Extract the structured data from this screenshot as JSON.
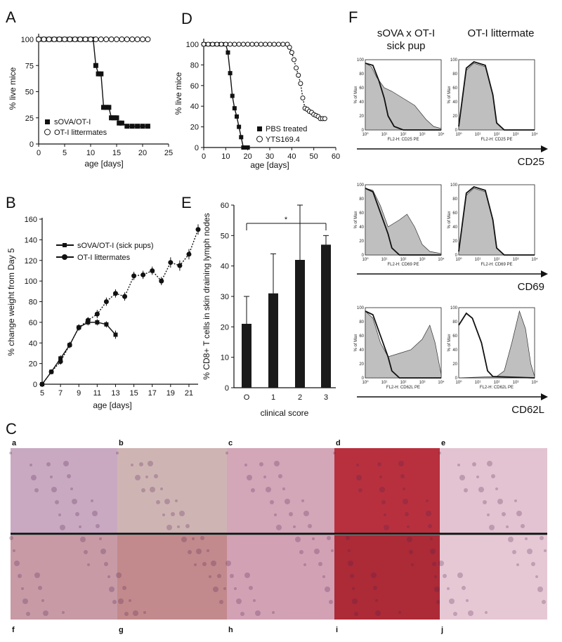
{
  "panel_labels": {
    "A": "A",
    "B": "B",
    "C": "C",
    "D": "D",
    "E": "E",
    "F": "F"
  },
  "chart_data": [
    {
      "id": "A",
      "type": "line",
      "xlabel": "age [days]",
      "ylabel": "% live mice",
      "xlim": [
        0,
        25
      ],
      "ylim": [
        0,
        100
      ],
      "xticks": [
        0,
        5,
        10,
        15,
        20,
        25
      ],
      "yticks": [
        0,
        25,
        50,
        75,
        100
      ],
      "legend": "bottom-left",
      "series": [
        {
          "name": "sOVA/OT-I",
          "marker": "filled-square",
          "x": [
            0,
            1,
            2,
            3,
            4,
            5,
            6,
            7,
            8,
            9,
            10,
            10.5,
            11,
            11.5,
            12,
            12.5,
            13,
            13.5,
            14,
            14.5,
            15,
            15.5,
            16,
            17,
            18,
            19,
            20,
            21
          ],
          "y": [
            100,
            100,
            100,
            100,
            100,
            100,
            100,
            100,
            100,
            100,
            100,
            100,
            75,
            67,
            67,
            35,
            35,
            35,
            25,
            25,
            25,
            20,
            20,
            17,
            17,
            17,
            17,
            17
          ]
        },
        {
          "name": "OT-I littermates",
          "marker": "open-circle",
          "x": [
            0,
            1,
            2,
            3,
            4,
            5,
            6,
            7,
            8,
            9,
            10,
            11,
            12,
            13,
            14,
            15,
            16,
            17,
            18,
            19,
            20,
            21
          ],
          "y": [
            100,
            100,
            100,
            100,
            100,
            100,
            100,
            100,
            100,
            100,
            100,
            100,
            100,
            100,
            100,
            100,
            100,
            100,
            100,
            100,
            100,
            100
          ]
        }
      ]
    },
    {
      "id": "B",
      "type": "line",
      "xlabel": "age [days]",
      "ylabel": "% change weight from Day 5",
      "xlim": [
        5,
        22
      ],
      "ylim": [
        0,
        160
      ],
      "xticks": [
        5,
        7,
        9,
        11,
        13,
        15,
        17,
        19,
        21
      ],
      "yticks": [
        0,
        20,
        40,
        60,
        80,
        100,
        120,
        140,
        160
      ],
      "legend": "top-left",
      "series": [
        {
          "name": "sOVA/OT-I (sick pups)",
          "marker": "filled-square",
          "x": [
            5,
            6,
            7,
            8,
            9,
            10,
            11,
            12,
            13
          ],
          "y": [
            0,
            12,
            25,
            38,
            55,
            60,
            60,
            58,
            48
          ],
          "err": [
            1,
            2,
            3,
            3,
            3,
            3,
            3,
            3,
            4
          ]
        },
        {
          "name": "OT-I littermates",
          "marker": "filled-circle",
          "x": [
            5,
            6,
            7,
            8,
            9,
            10,
            11,
            12,
            13,
            14,
            15,
            16,
            17,
            18,
            19,
            20,
            21,
            22
          ],
          "y": [
            0,
            12,
            22,
            38,
            55,
            62,
            68,
            80,
            88,
            85,
            105,
            106,
            110,
            100,
            118,
            115,
            126,
            150
          ],
          "err": [
            1,
            2,
            3,
            3,
            3,
            3,
            4,
            4,
            4,
            4,
            4,
            4,
            4,
            4,
            5,
            5,
            5,
            5
          ]
        }
      ]
    },
    {
      "id": "D",
      "type": "line",
      "xlabel": "age [days]",
      "ylabel": "% live mice",
      "xlim": [
        0,
        60
      ],
      "ylim": [
        0,
        100
      ],
      "xticks": [
        0,
        10,
        20,
        30,
        40,
        50,
        60
      ],
      "yticks": [
        0,
        20,
        40,
        60,
        80,
        100
      ],
      "legend": "bottom-center",
      "series": [
        {
          "name": "PBS treated",
          "marker": "filled-square",
          "x": [
            0,
            2,
            4,
            6,
            8,
            10,
            11,
            12,
            13,
            14,
            15,
            16,
            17,
            18,
            19,
            20
          ],
          "y": [
            100,
            100,
            100,
            100,
            100,
            100,
            92,
            72,
            50,
            38,
            30,
            20,
            10,
            0,
            0,
            0
          ]
        },
        {
          "name": "YTS169.4",
          "marker": "open-circle",
          "x": [
            0,
            2,
            4,
            6,
            8,
            10,
            12,
            14,
            16,
            18,
            20,
            22,
            24,
            26,
            28,
            30,
            32,
            34,
            36,
            38,
            39,
            40,
            41,
            42,
            43,
            44,
            45,
            46,
            47,
            48,
            49,
            50,
            51,
            52,
            53,
            54,
            55
          ],
          "y": [
            100,
            100,
            100,
            100,
            100,
            100,
            100,
            100,
            100,
            100,
            100,
            100,
            100,
            100,
            100,
            100,
            100,
            100,
            100,
            100,
            97,
            92,
            85,
            77,
            70,
            62,
            48,
            38,
            37,
            35,
            34,
            32,
            31,
            30,
            28,
            28,
            28
          ]
        }
      ]
    },
    {
      "id": "E",
      "type": "bar",
      "xlabel": "clinical score",
      "ylabel": "% CD8+ T cells in skin draining lymph nodes",
      "ylim": [
        0,
        60
      ],
      "yticks": [
        0,
        10,
        20,
        30,
        40,
        50,
        60
      ],
      "categories": [
        "O",
        "1",
        "2",
        "3"
      ],
      "values": [
        21,
        31,
        42,
        47
      ],
      "err": [
        9,
        13,
        18,
        3
      ],
      "annotation": "*"
    }
  ],
  "flow": {
    "col_headers": [
      "sOVA x OT-I",
      "sick pup",
      "OT-I littermate"
    ],
    "ylabel": "% of Max",
    "yticks": [
      "0",
      "20",
      "40",
      "60",
      "80",
      "100"
    ],
    "xticks": [
      "10⁰",
      "10¹",
      "10²",
      "10³",
      "10⁴"
    ],
    "rows": [
      {
        "marker": "CD25",
        "axis": "FL2-H: CD25 PE"
      },
      {
        "marker": "CD69",
        "axis": "FL2-H: CD69 PE"
      },
      {
        "marker": "CD62L",
        "axis": "FL2-H: CD62L PE"
      }
    ]
  },
  "histology": {
    "top_labels": [
      "a",
      "b",
      "c",
      "d",
      "e"
    ],
    "bottom_labels": [
      "f",
      "g",
      "h",
      "i",
      "j"
    ],
    "colors_top": [
      "#c9a9c1",
      "#cfb4b4",
      "#d3a6b8",
      "#b8303e",
      "#e3c3d1"
    ],
    "colors_bottom": [
      "#c79aa6",
      "#c28a8c",
      "#d2a1b4",
      "#ad2a37",
      "#e6c8d4"
    ]
  }
}
